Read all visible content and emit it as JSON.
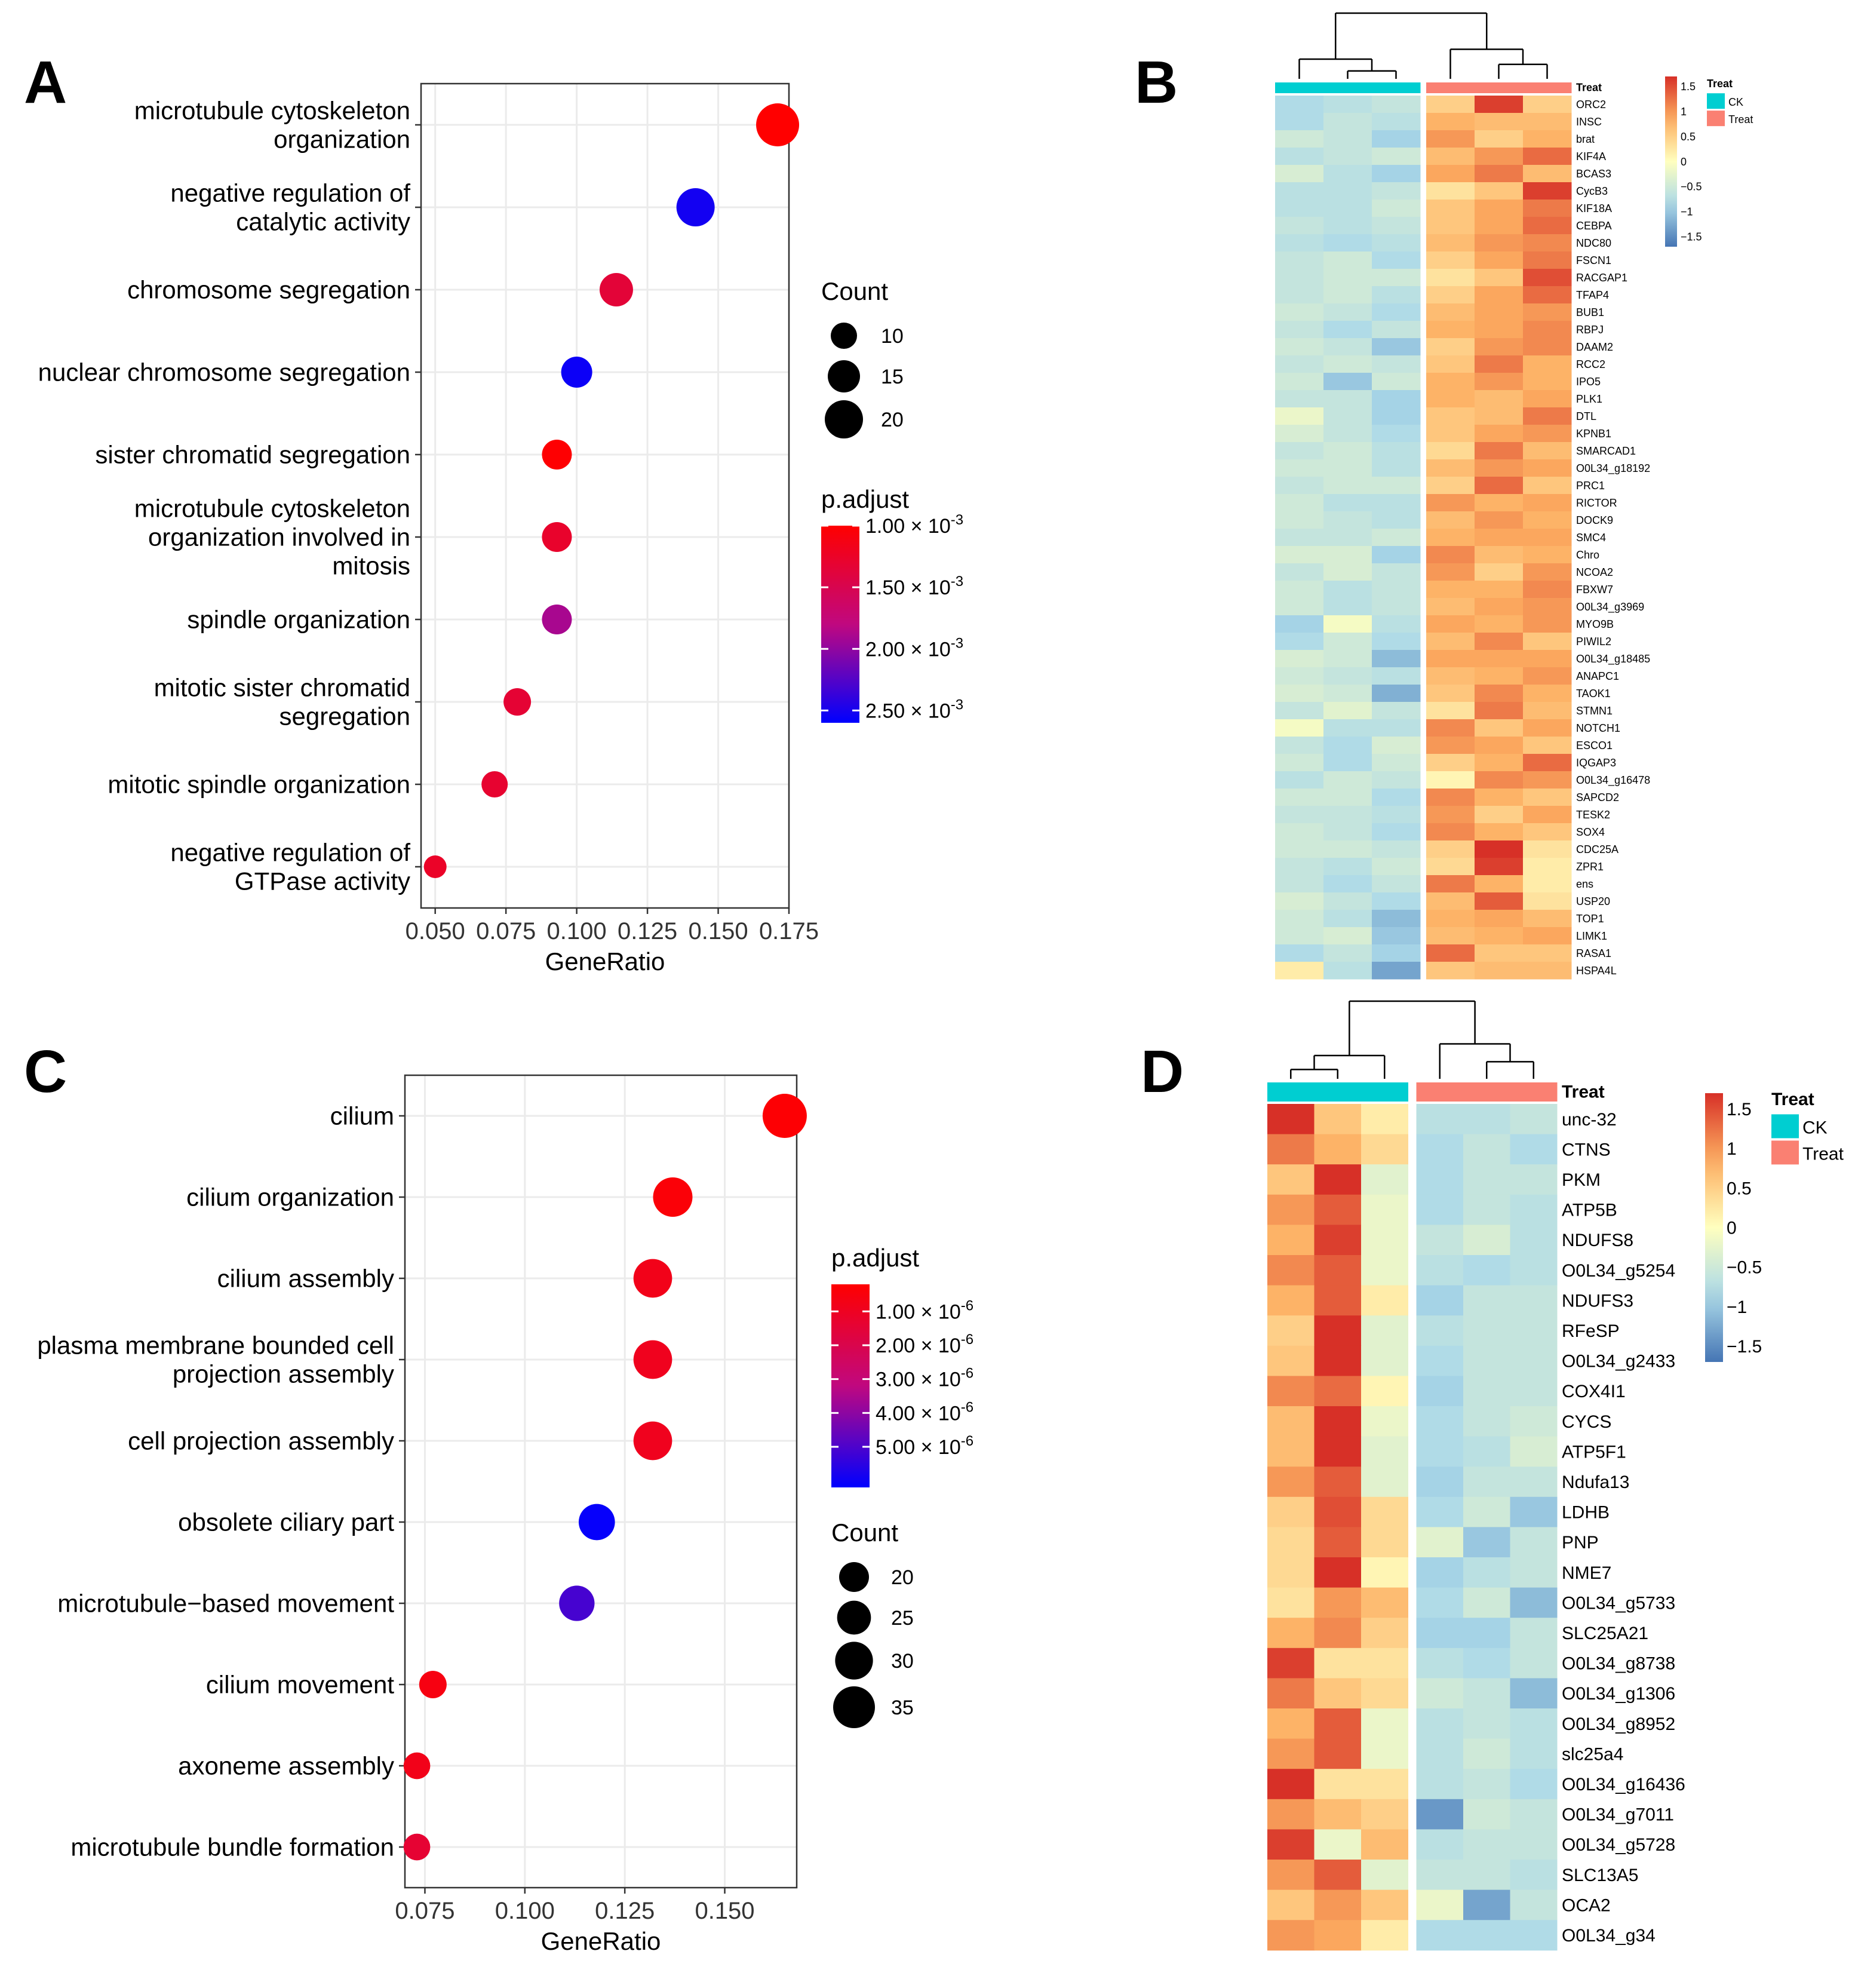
{
  "figure": {
    "panel_labels": [
      "A",
      "B",
      "C",
      "D"
    ]
  },
  "colors": {
    "ck": "#00CED1",
    "treat": "#FA8072",
    "padj_low": "#FF0000",
    "padj_high": "#0000FF"
  },
  "chart_data": [
    {
      "panel": "A",
      "type": "scatter",
      "xlabel": "GeneRatio",
      "xlim": [
        0.045,
        0.175
      ],
      "x_ticks": [
        0.05,
        0.075,
        0.1,
        0.125,
        0.15,
        0.175
      ],
      "x_tick_labels": [
        "0.050",
        "0.075",
        "0.100",
        "0.125",
        "0.150",
        "0.175"
      ],
      "categories": [
        [
          "microtubule cytoskeleton",
          "organization"
        ],
        [
          "negative regulation of",
          "catalytic activity"
        ],
        [
          "chromosome segregation"
        ],
        [
          "nuclear chromosome segregation"
        ],
        [
          "sister chromatid segregation"
        ],
        [
          "microtubule cytoskeleton",
          "organization involved in",
          "mitosis"
        ],
        [
          "spindle organization"
        ],
        [
          "mitotic sister chromatid",
          "segregation"
        ],
        [
          "mitotic spindle organization"
        ],
        [
          "negative regulation of",
          "GTPase activity"
        ]
      ],
      "gene_ratio": [
        0.171,
        0.142,
        0.114,
        0.1,
        0.093,
        0.093,
        0.093,
        0.079,
        0.071,
        0.05
      ],
      "count": [
        24,
        20,
        16,
        14,
        13,
        13,
        13,
        11,
        10,
        7
      ],
      "p_adjust": [
        0.00098,
        0.00252,
        0.00135,
        0.00255,
        0.00101,
        0.00128,
        0.0019,
        0.00133,
        0.0013,
        0.00125
      ],
      "size_legend": {
        "title": "Count",
        "values": [
          10,
          15,
          20
        ],
        "labels": [
          "10",
          "15",
          "20"
        ]
      },
      "color_legend": {
        "title": "p.adjust",
        "range": [
          0.001,
          0.0026
        ],
        "ticks": [
          0.001,
          0.0015,
          0.002,
          0.0025
        ],
        "mantissas": [
          "1.00",
          "1.50",
          "2.00",
          "2.50"
        ],
        "times": "×",
        "base": "10",
        "exponent": "-3"
      }
    },
    {
      "panel": "B",
      "type": "heatmap",
      "annotation_title": "Treat",
      "groups": [
        "CK",
        "Treat"
      ],
      "columns": [
        "CK",
        "CK",
        "CK",
        "Treat",
        "Treat",
        "Treat"
      ],
      "legend_ticks": [
        1.5,
        1,
        0.5,
        0,
        -0.5,
        -1,
        -1.5
      ],
      "legend_labels": [
        "1.5",
        "1",
        "0.5",
        "0",
        "−0.5",
        "−1",
        "−1.5"
      ],
      "rows": [
        "ORC2",
        "INSC",
        "brat",
        "KIF4A",
        "BCAS3",
        "CycB3",
        "KIF18A",
        "CEBPA",
        "NDC80",
        "FSCN1",
        "RACGAP1",
        "TFAP4",
        "BUB1",
        "RBPJ",
        "DAAM2",
        "RCC2",
        "IPO5",
        "PLK1",
        "DTL",
        "KPNB1",
        "SMARCAD1",
        "O0L34_g18192",
        "PRC1",
        "RICTOR",
        "DOCK9",
        "SMC4",
        "Chro",
        "NCOA2",
        "FBXW7",
        "O0L34_g3969",
        "MYO9B",
        "PIWIL2",
        "O0L34_g18485",
        "ANAPC1",
        "TAOK1",
        "STMN1",
        "NOTCH1",
        "ESCO1",
        "IQGAP3",
        "O0L34_g16478",
        "SAPCD2",
        "TESK2",
        "SOX4",
        "CDC25A",
        "ZPR1",
        "ens",
        "USP20",
        "TOP1",
        "LIMK1",
        "RASA1",
        "HSPA4L"
      ],
      "values": [
        [
          -0.8,
          -0.7,
          -0.6,
          0.5,
          1.6,
          0.5
        ],
        [
          -0.8,
          -0.6,
          -0.7,
          0.8,
          0.7,
          0.7
        ],
        [
          -0.5,
          -0.6,
          -0.9,
          1.0,
          0.5,
          0.8
        ],
        [
          -0.7,
          -0.6,
          -0.5,
          0.7,
          1.0,
          1.3
        ],
        [
          -0.4,
          -0.7,
          -0.9,
          0.9,
          1.2,
          0.7
        ],
        [
          -0.7,
          -0.7,
          -0.6,
          0.3,
          0.6,
          1.6
        ],
        [
          -0.7,
          -0.7,
          -0.5,
          0.6,
          0.9,
          1.2
        ],
        [
          -0.6,
          -0.7,
          -0.6,
          0.6,
          0.9,
          1.3
        ],
        [
          -0.7,
          -0.8,
          -0.7,
          0.7,
          1.0,
          1.1
        ],
        [
          -0.6,
          -0.5,
          -0.8,
          0.5,
          0.9,
          1.2
        ],
        [
          -0.6,
          -0.5,
          -0.5,
          0.3,
          0.6,
          1.5
        ],
        [
          -0.6,
          -0.5,
          -0.7,
          0.5,
          0.9,
          1.3
        ],
        [
          -0.5,
          -0.6,
          -0.8,
          0.7,
          0.9,
          1.0
        ],
        [
          -0.6,
          -0.8,
          -0.6,
          0.8,
          0.9,
          1.1
        ],
        [
          -0.5,
          -0.6,
          -1.0,
          0.5,
          1.0,
          1.1
        ],
        [
          -0.6,
          -0.5,
          -0.6,
          0.6,
          1.2,
          0.8
        ],
        [
          -0.5,
          -1.0,
          -0.5,
          0.8,
          1.0,
          0.8
        ],
        [
          -0.6,
          -0.6,
          -0.9,
          0.8,
          0.7,
          0.9
        ],
        [
          -0.2,
          -0.6,
          -0.9,
          0.6,
          0.7,
          1.2
        ],
        [
          -0.4,
          -0.6,
          -0.8,
          0.6,
          0.9,
          1.0
        ],
        [
          -0.6,
          -0.5,
          -0.7,
          0.4,
          1.2,
          0.7
        ],
        [
          -0.5,
          -0.5,
          -0.7,
          0.7,
          1.0,
          0.9
        ],
        [
          -0.6,
          -0.5,
          -0.5,
          0.5,
          1.3,
          0.6
        ],
        [
          -0.5,
          -0.7,
          -0.7,
          1.0,
          0.8,
          0.9
        ],
        [
          -0.5,
          -0.6,
          -0.7,
          0.7,
          1.0,
          0.8
        ],
        [
          -0.6,
          -0.6,
          -0.5,
          0.8,
          0.9,
          0.9
        ],
        [
          -0.4,
          -0.4,
          -0.9,
          1.1,
          0.7,
          0.8
        ],
        [
          -0.6,
          -0.4,
          -0.6,
          1.0,
          0.5,
          1.0
        ],
        [
          -0.5,
          -0.7,
          -0.6,
          0.8,
          0.8,
          1.1
        ],
        [
          -0.5,
          -0.7,
          -0.6,
          0.7,
          0.9,
          1.0
        ],
        [
          -0.9,
          -0.1,
          -0.7,
          0.9,
          0.8,
          1.0
        ],
        [
          -0.8,
          -0.5,
          -0.8,
          0.7,
          1.1,
          0.6
        ],
        [
          -0.4,
          -0.5,
          -1.1,
          0.9,
          0.9,
          0.9
        ],
        [
          -0.5,
          -0.6,
          -0.7,
          0.7,
          0.8,
          1.0
        ],
        [
          -0.4,
          -0.5,
          -1.2,
          0.6,
          1.1,
          0.8
        ],
        [
          -0.6,
          -0.3,
          -0.6,
          0.3,
          1.2,
          0.7
        ],
        [
          -0.1,
          -0.7,
          -0.7,
          1.1,
          0.6,
          0.9
        ],
        [
          -0.6,
          -0.8,
          -0.4,
          1.0,
          0.9,
          0.6
        ],
        [
          -0.5,
          -0.8,
          -0.5,
          0.5,
          0.8,
          1.3
        ],
        [
          -0.7,
          -0.5,
          -0.6,
          0.1,
          1.1,
          1.0
        ],
        [
          -0.5,
          -0.5,
          -0.8,
          1.1,
          0.8,
          0.6
        ],
        [
          -0.6,
          -0.6,
          -0.7,
          1.0,
          0.5,
          0.9
        ],
        [
          -0.5,
          -0.6,
          -0.8,
          1.1,
          0.8,
          0.6
        ],
        [
          -0.5,
          -0.5,
          -0.6,
          0.5,
          1.7,
          0.3
        ],
        [
          -0.6,
          -0.7,
          -0.5,
          0.4,
          1.6,
          0.2
        ],
        [
          -0.6,
          -0.8,
          -0.6,
          1.2,
          0.8,
          0.2
        ],
        [
          -0.4,
          -0.6,
          -0.8,
          0.7,
          1.4,
          0.3
        ],
        [
          -0.5,
          -0.7,
          -1.1,
          0.8,
          0.9,
          0.7
        ],
        [
          -0.5,
          -0.4,
          -1.0,
          0.7,
          0.8,
          0.9
        ],
        [
          -0.8,
          -0.6,
          -0.9,
          1.3,
          0.6,
          0.6
        ],
        [
          0.2,
          -0.7,
          -1.3,
          0.6,
          0.7,
          0.7
        ]
      ]
    },
    {
      "panel": "C",
      "type": "scatter",
      "xlabel": "GeneRatio",
      "xlim": [
        0.07,
        0.168
      ],
      "x_ticks": [
        0.075,
        0.1,
        0.125,
        0.15
      ],
      "x_tick_labels": [
        "0.075",
        "0.100",
        "0.125",
        "0.150"
      ],
      "categories": [
        [
          "cilium"
        ],
        [
          "cilium organization"
        ],
        [
          "cilium assembly"
        ],
        [
          "plasma membrane bounded cell",
          "projection assembly"
        ],
        [
          "cell projection assembly"
        ],
        [
          "obsolete ciliary part"
        ],
        [
          "microtubule−based movement"
        ],
        [
          "cilium movement"
        ],
        [
          "axoneme assembly"
        ],
        [
          "microtubule bundle formation"
        ]
      ],
      "gene_ratio": [
        0.165,
        0.137,
        0.132,
        0.132,
        0.132,
        0.118,
        0.113,
        0.077,
        0.073,
        0.073
      ],
      "count": [
        38,
        32,
        31,
        31,
        31,
        28,
        27,
        17,
        16,
        16
      ],
      "p_adjust": [
        3e-07,
        4e-07,
        8e-07,
        9e-07,
        9e-07,
        6.1e-06,
        5.1e-06,
        6e-07,
        8e-07,
        1.4e-06
      ],
      "size_legend": {
        "title": "Count",
        "values": [
          20,
          25,
          30,
          35
        ],
        "labels": [
          "20",
          "25",
          "30",
          "35"
        ]
      },
      "color_legend": {
        "title": "p.adjust",
        "range": [
          2e-07,
          6.2e-06
        ],
        "ticks": [
          1e-06,
          2e-06,
          3e-06,
          4e-06,
          5e-06
        ],
        "mantissas": [
          "1.00",
          "2.00",
          "3.00",
          "4.00",
          "5.00"
        ],
        "times": "×",
        "base": "10",
        "exponent": "-6"
      }
    },
    {
      "panel": "D",
      "type": "heatmap",
      "annotation_title": "Treat",
      "groups": [
        "CK",
        "Treat"
      ],
      "columns": [
        "CK",
        "CK",
        "CK",
        "Treat",
        "Treat",
        "Treat"
      ],
      "legend_ticks": [
        1.5,
        1,
        0.5,
        0,
        -0.5,
        -1,
        -1.5
      ],
      "legend_labels": [
        "1.5",
        "1",
        "0.5",
        "0",
        "−0.5",
        "−1",
        "−1.5"
      ],
      "rows": [
        "unc-32",
        "CTNS",
        "PKM",
        "ATP5B",
        "NDUFS8",
        "O0L34_g5254",
        "NDUFS3",
        "RFeSP",
        "O0L34_g2433",
        "COX4I1",
        "CYCS",
        "ATP5F1",
        "Ndufa13",
        "LDHB",
        "PNP",
        "NME7",
        "O0L34_g5733",
        "SLC25A21",
        "O0L34_g8738",
        "O0L34_g1306",
        "O0L34_g8952",
        "slc25a4",
        "O0L34_g16436",
        "O0L34_g7011",
        "O0L34_g5728",
        "SLC13A5",
        "OCA2",
        "O0L34_g34"
      ],
      "values": [
        [
          1.7,
          0.6,
          0.2,
          -0.7,
          -0.7,
          -0.6
        ],
        [
          1.2,
          0.8,
          0.4,
          -0.8,
          -0.6,
          -0.8
        ],
        [
          0.6,
          1.7,
          -0.3,
          -0.8,
          -0.6,
          -0.6
        ],
        [
          1.0,
          1.4,
          -0.2,
          -0.8,
          -0.6,
          -0.7
        ],
        [
          0.8,
          1.6,
          -0.2,
          -0.6,
          -0.4,
          -0.7
        ],
        [
          1.1,
          1.4,
          -0.2,
          -0.7,
          -0.8,
          -0.7
        ],
        [
          0.8,
          1.4,
          0.2,
          -0.9,
          -0.6,
          -0.6
        ],
        [
          0.5,
          1.8,
          -0.3,
          -0.7,
          -0.6,
          -0.6
        ],
        [
          0.6,
          1.7,
          -0.3,
          -0.8,
          -0.6,
          -0.6
        ],
        [
          1.1,
          1.3,
          0.1,
          -0.9,
          -0.6,
          -0.6
        ],
        [
          0.7,
          1.7,
          -0.2,
          -0.8,
          -0.6,
          -0.5
        ],
        [
          0.7,
          1.7,
          -0.3,
          -0.8,
          -0.7,
          -0.4
        ],
        [
          1.0,
          1.4,
          -0.3,
          -0.9,
          -0.6,
          -0.6
        ],
        [
          0.5,
          1.5,
          0.4,
          -0.8,
          -0.5,
          -1.0
        ],
        [
          0.4,
          1.4,
          0.4,
          -0.3,
          -1.0,
          -0.6
        ],
        [
          0.4,
          1.8,
          0.1,
          -0.9,
          -0.7,
          -0.6
        ],
        [
          0.3,
          1.0,
          0.7,
          -0.8,
          -0.5,
          -1.1
        ],
        [
          0.8,
          1.1,
          0.5,
          -0.9,
          -0.9,
          -0.6
        ],
        [
          1.6,
          0.3,
          0.3,
          -0.7,
          -0.8,
          -0.6
        ],
        [
          1.2,
          0.6,
          0.4,
          -0.5,
          -0.6,
          -1.1
        ],
        [
          0.8,
          1.4,
          -0.2,
          -0.7,
          -0.6,
          -0.7
        ],
        [
          1.0,
          1.4,
          -0.2,
          -0.7,
          -0.5,
          -0.7
        ],
        [
          1.7,
          0.3,
          0.3,
          -0.7,
          -0.6,
          -0.8
        ],
        [
          1.0,
          0.7,
          0.5,
          -1.4,
          -0.5,
          -0.6
        ],
        [
          1.6,
          -0.2,
          0.7,
          -0.7,
          -0.6,
          -0.6
        ],
        [
          1.0,
          1.4,
          -0.3,
          -0.6,
          -0.6,
          -0.7
        ],
        [
          0.6,
          1.0,
          0.6,
          -0.2,
          -1.3,
          -0.6
        ],
        [
          1.0,
          0.9,
          0.2,
          -0.8,
          -0.8,
          -0.8
        ]
      ]
    }
  ]
}
